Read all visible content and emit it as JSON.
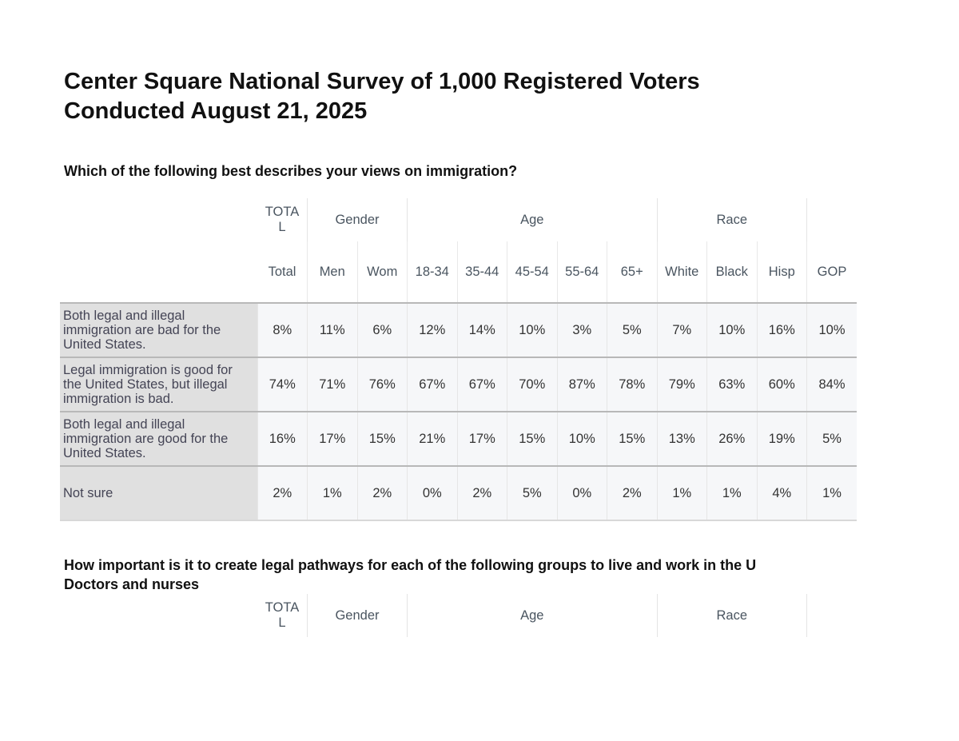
{
  "title_line1": "Center Square National Survey of 1,000 Registered Voters",
  "title_line2": "Conducted August 21, 2025",
  "question1": "Which of the following best describes your views on immigration?",
  "groups": {
    "total": "TOTA L",
    "gender": "Gender",
    "age": "Age",
    "race": "Race"
  },
  "columns": [
    "Total",
    "Men",
    "Wom",
    "18-34",
    "35-44",
    "45-54",
    "55-64",
    "65+",
    "White",
    "Black",
    "Hisp",
    "GOP"
  ],
  "rows": [
    {
      "label": "Both legal and illegal immigration are bad for the United States.",
      "values": [
        "8%",
        "11%",
        "6%",
        "12%",
        "14%",
        "10%",
        "3%",
        "5%",
        "7%",
        "10%",
        "16%",
        "10%"
      ]
    },
    {
      "label": "Legal immigration is good for the United States, but illegal immigration is bad.",
      "values": [
        "74%",
        "71%",
        "76%",
        "67%",
        "67%",
        "70%",
        "87%",
        "78%",
        "79%",
        "63%",
        "60%",
        "84%"
      ]
    },
    {
      "label": "Both legal and illegal immigration are good for the United States.",
      "values": [
        "16%",
        "17%",
        "15%",
        "21%",
        "17%",
        "15%",
        "10%",
        "15%",
        "13%",
        "26%",
        "19%",
        "5%"
      ]
    },
    {
      "label": "Not sure",
      "values": [
        "2%",
        "1%",
        "2%",
        "0%",
        "2%",
        "5%",
        "0%",
        "2%",
        "1%",
        "1%",
        "4%",
        "1%"
      ]
    }
  ],
  "question2": "How important is it to create legal pathways for each of the following groups to live and work in the U",
  "question2_sub": "Doctors and nurses"
}
